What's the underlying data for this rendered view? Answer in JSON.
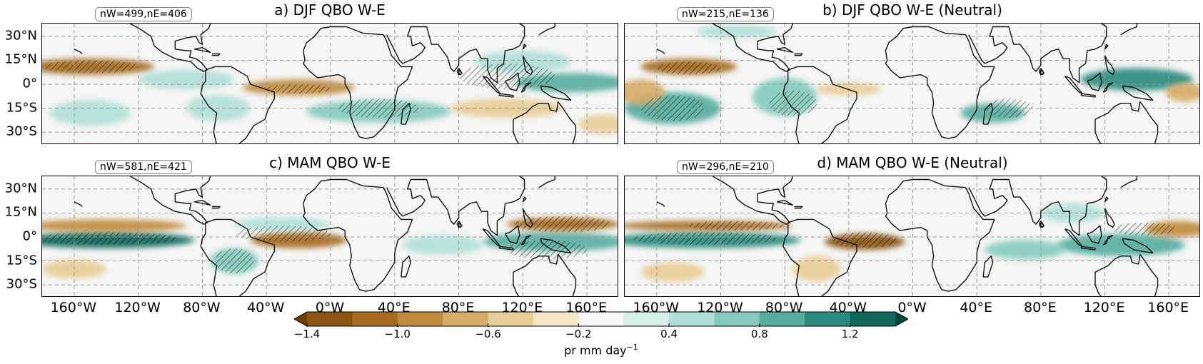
{
  "panels": [
    {
      "title": "a) DJF QBO W-E",
      "counts": "nW=499,nE=406"
    },
    {
      "title": "b) DJF QBO W-E (Neutral)",
      "counts": "nW=215,nE=136"
    },
    {
      "title": "c) MAM QBO W-E",
      "counts": "nW=581,nE=421"
    },
    {
      "title": "d) MAM QBO W-E (Neutral)",
      "counts": "nW=296,nE=210"
    }
  ],
  "lat_ticks": [
    "30°N",
    "15°N",
    "0°",
    "15°S",
    "30°S"
  ],
  "lon_ticks": [
    "160°W",
    "120°W",
    "80°W",
    "40°W",
    "0°W",
    "40°E",
    "80°E",
    "120°E",
    "160°E"
  ],
  "colorbar": {
    "ticks": [
      "−1.4",
      "−1.0",
      "−0.6",
      "−0.2",
      "0.4",
      "0.8",
      "1.2"
    ],
    "label": "pr mm day",
    "label_exp": "−1",
    "colors": [
      "#6b3d05",
      "#8a5310",
      "#a66b1e",
      "#c08a3c",
      "#d6ac68",
      "#e8cd96",
      "#f4e6c4",
      "#f5f5f5",
      "#d6efe9",
      "#b0e0d6",
      "#84cbbd",
      "#55ad9f",
      "#2c8b7e",
      "#10675c",
      "#044a40"
    ],
    "extend": "both"
  },
  "fields": {
    "a": [
      {
        "lon": -150,
        "lat": 11,
        "v": -1.1,
        "rx": 40,
        "ry": 5
      },
      {
        "lon": -90,
        "lat": 3,
        "v": 0.5,
        "rx": 30,
        "ry": 6
      },
      {
        "lon": -20,
        "lat": -2,
        "v": -0.8,
        "rx": 35,
        "ry": 5
      },
      {
        "lon": 30,
        "lat": -17,
        "v": 0.7,
        "rx": 45,
        "ry": 7
      },
      {
        "lon": 150,
        "lat": 1,
        "v": 0.9,
        "rx": 35,
        "ry": 6
      },
      {
        "lon": 120,
        "lat": 14,
        "v": 0.6,
        "rx": 30,
        "ry": 7
      },
      {
        "lon": 110,
        "lat": -15,
        "v": -0.5,
        "rx": 35,
        "ry": 6
      },
      {
        "lon": -70,
        "lat": -15,
        "v": 0.6,
        "rx": 20,
        "ry": 8
      },
      {
        "lon": -150,
        "lat": -18,
        "v": 0.5,
        "rx": 25,
        "ry": 8
      },
      {
        "lon": 170,
        "lat": -25,
        "v": -0.4,
        "rx": 15,
        "ry": 6
      }
    ],
    "b": [
      {
        "lon": -140,
        "lat": 11,
        "v": -1.1,
        "rx": 30,
        "ry": 5
      },
      {
        "lon": -150,
        "lat": -15,
        "v": 0.9,
        "rx": 30,
        "ry": 10
      },
      {
        "lon": -170,
        "lat": -5,
        "v": -0.6,
        "rx": 15,
        "ry": 8
      },
      {
        "lon": -80,
        "lat": -8,
        "v": 0.8,
        "rx": 20,
        "ry": 12
      },
      {
        "lon": -40,
        "lat": -3,
        "v": -0.5,
        "rx": 20,
        "ry": 4
      },
      {
        "lon": 50,
        "lat": -18,
        "v": 1.0,
        "rx": 20,
        "ry": 6
      },
      {
        "lon": 140,
        "lat": 3,
        "v": 1.1,
        "rx": 35,
        "ry": 7
      },
      {
        "lon": 170,
        "lat": -5,
        "v": -0.6,
        "rx": 12,
        "ry": 6
      },
      {
        "lon": -110,
        "lat": 33,
        "v": 0.5,
        "rx": 25,
        "ry": 4
      }
    ],
    "c": [
      {
        "lon": -140,
        "lat": -2,
        "v": 1.3,
        "rx": 55,
        "ry": 5
      },
      {
        "lon": -140,
        "lat": 7,
        "v": -0.9,
        "rx": 50,
        "ry": 4
      },
      {
        "lon": -20,
        "lat": -2,
        "v": -1.0,
        "rx": 30,
        "ry": 5
      },
      {
        "lon": -30,
        "lat": 8,
        "v": 0.6,
        "rx": 30,
        "ry": 4
      },
      {
        "lon": 140,
        "lat": -3,
        "v": 1.0,
        "rx": 45,
        "ry": 6
      },
      {
        "lon": 145,
        "lat": 8,
        "v": -1.0,
        "rx": 35,
        "ry": 4
      },
      {
        "lon": -60,
        "lat": -15,
        "v": 0.7,
        "rx": 15,
        "ry": 8
      },
      {
        "lon": 70,
        "lat": -5,
        "v": 0.5,
        "rx": 25,
        "ry": 6
      },
      {
        "lon": -160,
        "lat": -20,
        "v": -0.5,
        "rx": 20,
        "ry": 6
      }
    ],
    "d": [
      {
        "lon": -130,
        "lat": -2,
        "v": 1.2,
        "rx": 60,
        "ry": 5
      },
      {
        "lon": -130,
        "lat": 7,
        "v": -1.0,
        "rx": 55,
        "ry": 3
      },
      {
        "lon": -30,
        "lat": -3,
        "v": -1.2,
        "rx": 25,
        "ry": 5
      },
      {
        "lon": 130,
        "lat": -5,
        "v": 1.0,
        "rx": 40,
        "ry": 7
      },
      {
        "lon": 165,
        "lat": 5,
        "v": -0.8,
        "rx": 20,
        "ry": 5
      },
      {
        "lon": 70,
        "lat": -8,
        "v": 0.7,
        "rx": 25,
        "ry": 6
      },
      {
        "lon": -60,
        "lat": -20,
        "v": -0.5,
        "rx": 15,
        "ry": 8
      },
      {
        "lon": -150,
        "lat": -22,
        "v": -0.5,
        "rx": 20,
        "ry": 6
      },
      {
        "lon": 100,
        "lat": 15,
        "v": 0.5,
        "rx": 20,
        "ry": 6
      }
    ]
  },
  "hatching": {
    "a": [
      [
        -150,
        11,
        30,
        4
      ],
      [
        -20,
        -3,
        20,
        3
      ],
      [
        30,
        -15,
        25,
        6
      ],
      [
        110,
        5,
        30,
        8
      ]
    ],
    "b": [
      [
        -140,
        10,
        20,
        4
      ],
      [
        -150,
        -15,
        20,
        8
      ],
      [
        -75,
        -12,
        15,
        8
      ],
      [
        60,
        -15,
        15,
        6
      ]
    ],
    "c": [
      [
        -140,
        -1,
        45,
        4
      ],
      [
        -30,
        2,
        30,
        5
      ],
      [
        145,
        8,
        30,
        5
      ],
      [
        135,
        -8,
        25,
        6
      ],
      [
        -60,
        -15,
        12,
        8
      ]
    ],
    "d": [
      [
        -130,
        -1,
        45,
        4
      ],
      [
        -30,
        -2,
        20,
        5
      ],
      [
        145,
        5,
        20,
        4
      ],
      [
        -110,
        7,
        30,
        3
      ]
    ]
  }
}
